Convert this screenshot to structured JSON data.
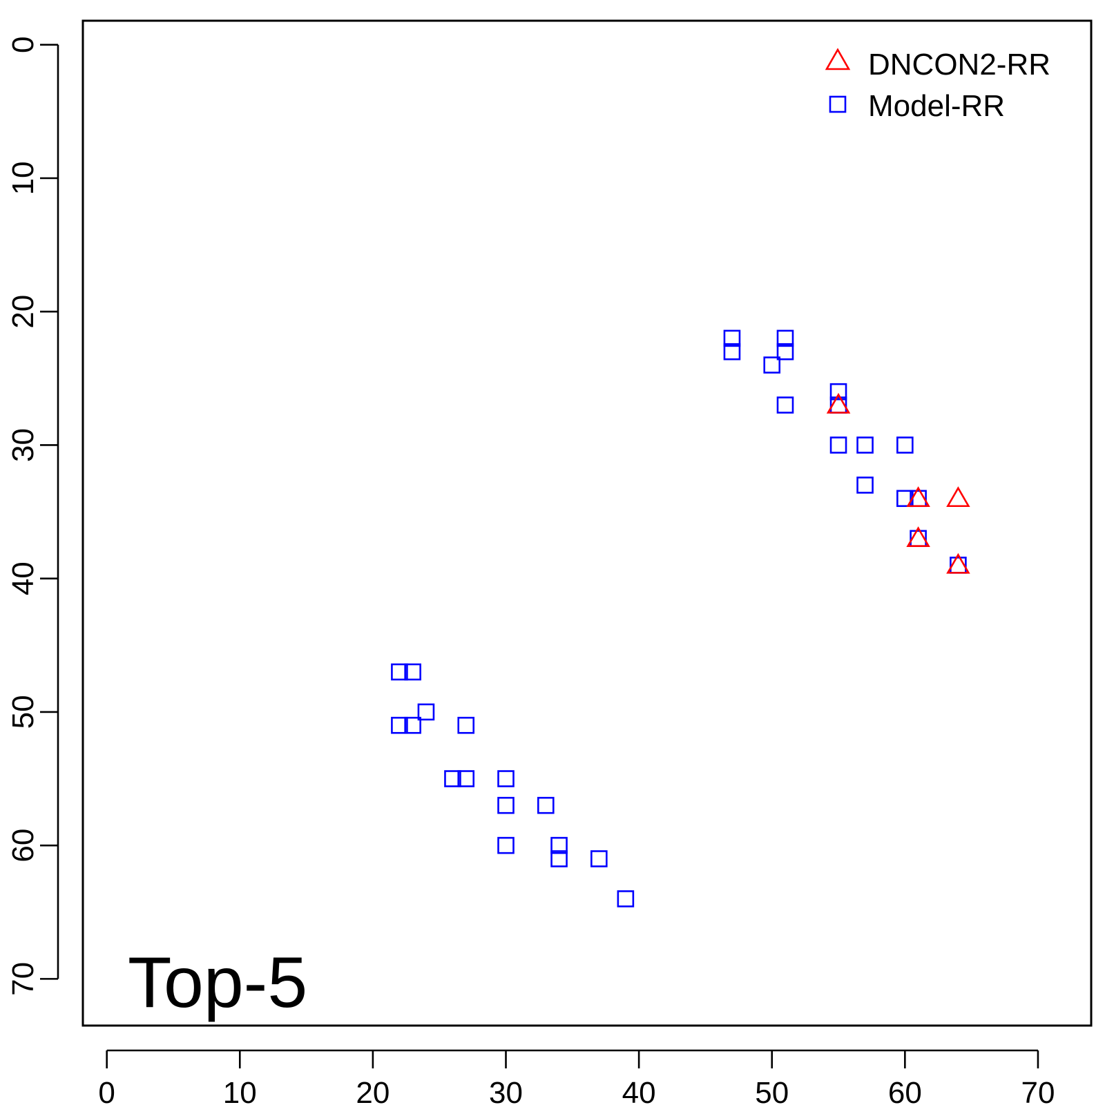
{
  "chart_data": {
    "type": "scatter",
    "x_axis": {
      "ticks": [
        "0",
        "10",
        "20",
        "30",
        "40",
        "50",
        "60",
        "70"
      ],
      "range": [
        -1.8,
        74
      ],
      "reversed": false
    },
    "y_axis": {
      "ticks": [
        "0",
        "10",
        "20",
        "30",
        "40",
        "50",
        "60",
        "70"
      ],
      "range": [
        -1.8,
        73.5
      ],
      "reversed": true
    },
    "annotation": "Top-5",
    "legend": {
      "placement": "top-right"
    },
    "series": [
      {
        "name": "DNCON2-RR",
        "marker": "triangle",
        "color": "#ff0000",
        "points": [
          [
            55,
            27
          ],
          [
            61,
            34
          ],
          [
            64,
            34
          ],
          [
            61,
            37
          ],
          [
            64,
            39
          ]
        ]
      },
      {
        "name": "Model-RR",
        "marker": "square",
        "color": "#0000ff",
        "points": [
          [
            47,
            22
          ],
          [
            47,
            23
          ],
          [
            51,
            22
          ],
          [
            51,
            23
          ],
          [
            50,
            24
          ],
          [
            55,
            26
          ],
          [
            55,
            27
          ],
          [
            51,
            27
          ],
          [
            55,
            30
          ],
          [
            57,
            30
          ],
          [
            60,
            30
          ],
          [
            57,
            33
          ],
          [
            60,
            34
          ],
          [
            61,
            34
          ],
          [
            61,
            37
          ],
          [
            64,
            39
          ],
          [
            22,
            47
          ],
          [
            23,
            47
          ],
          [
            24,
            50
          ],
          [
            22,
            51
          ],
          [
            23,
            51
          ],
          [
            27,
            51
          ],
          [
            26,
            55
          ],
          [
            27,
            55
          ],
          [
            30,
            55
          ],
          [
            30,
            57
          ],
          [
            33,
            57
          ],
          [
            30,
            60
          ],
          [
            34,
            60
          ],
          [
            34,
            61
          ],
          [
            37,
            61
          ],
          [
            39,
            64
          ]
        ]
      }
    ]
  }
}
